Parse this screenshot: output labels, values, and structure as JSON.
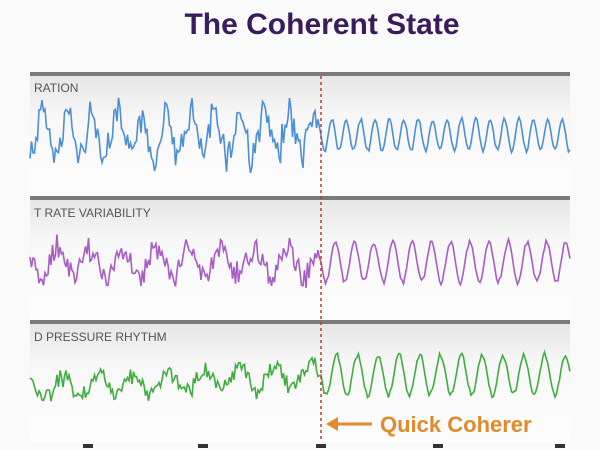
{
  "header": {
    "title": "The Coherent State"
  },
  "panels": [
    {
      "label": "RATION"
    },
    {
      "label": "T RATE VARIABILITY"
    },
    {
      "label": "D PRESSURE RHYTHM"
    }
  ],
  "annotation": {
    "text": "Quick Coherer"
  }
}
